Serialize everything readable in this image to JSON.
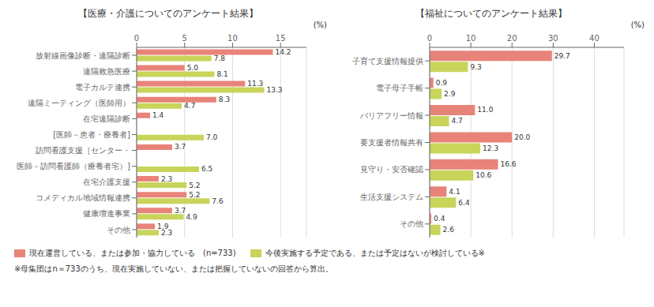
{
  "chart_data": [
    {
      "type": "bar",
      "orientation": "horizontal",
      "title": "【医療・介護についてのアンケート結果】",
      "xlabel": "(%)",
      "categories": [
        "放射線画像診断・遠隔診断",
        "遠隔救急医療",
        "電子カルテ連携",
        "遠隔ミーティング（医師用）",
        "在宅遠隔診断",
        "[医師－患者・療養者]",
        "訪問看護支援［センター・",
        "医師－訪問看護師（療養者宅）]",
        "在宅介護支援",
        "コメディカル地域情報連携",
        "健康増進事業",
        "その他"
      ],
      "series": [
        {
          "name": "現在運営している、または参加・協力している　(n=733)",
          "color": "#e8837a",
          "values": [
            14.2,
            5.0,
            11.3,
            8.3,
            1.4,
            null,
            3.7,
            null,
            2.3,
            5.2,
            3.7,
            1.9
          ],
          "value_labels": [
            "14.2",
            "5.0",
            "11.3",
            "8.3",
            "1.4",
            null,
            "3.7",
            null,
            "2.3",
            "5.2",
            "3.7",
            "1.9"
          ]
        },
        {
          "name": "今後実施する予定である、または予定はないが検討している※",
          "color": "#c8d45a",
          "values": [
            7.8,
            8.1,
            13.3,
            4.7,
            null,
            7.0,
            null,
            6.5,
            5.2,
            7.6,
            4.9,
            2.3
          ],
          "value_labels": [
            "7.8",
            "8.1",
            "13.3",
            "4.7",
            null,
            "7.0",
            null,
            "6.5",
            "5.2",
            "7.6",
            "4.9",
            "2.3"
          ]
        }
      ],
      "xlim": [
        0,
        17.7
      ],
      "xticks": [
        0,
        5,
        10,
        15
      ],
      "grid": true,
      "data_labels": true,
      "annotations": [
        "※母集団はn＝733のうち、現在実施していない、または把握していないの回答から算出。"
      ]
    },
    {
      "type": "bar",
      "orientation": "horizontal",
      "title": "【福祉についてのアンケート結果】",
      "xlabel": "(%)",
      "categories": [
        "子育て支援情報提供",
        "電子母子手帳",
        "バリアフリー情報",
        "要支援者情報共有",
        "見守り・安否確認",
        "生活支援システム",
        "その他"
      ],
      "series": [
        {
          "name": "現在運営している、または参加・協力している　(n=733)",
          "color": "#e8837a",
          "values": [
            29.7,
            0.9,
            11.0,
            20.0,
            16.6,
            4.1,
            0.4
          ],
          "value_labels": [
            "29.7",
            "0.9",
            "11.0",
            "20.0",
            "16.6",
            "4.1",
            "0.4"
          ]
        },
        {
          "name": "今後実施する予定である、または予定はないが検討している※",
          "color": "#c8d45a",
          "values": [
            9.3,
            2.9,
            4.7,
            12.3,
            10.6,
            6.4,
            2.6
          ],
          "value_labels": [
            "9.3",
            "2.9",
            "4.7",
            "12.3",
            "10.6",
            "6.4",
            "2.6"
          ]
        }
      ],
      "xlim": [
        0,
        47.2
      ],
      "xticks": [
        0,
        10,
        20,
        30,
        40
      ],
      "grid": true,
      "data_labels": true
    }
  ]
}
